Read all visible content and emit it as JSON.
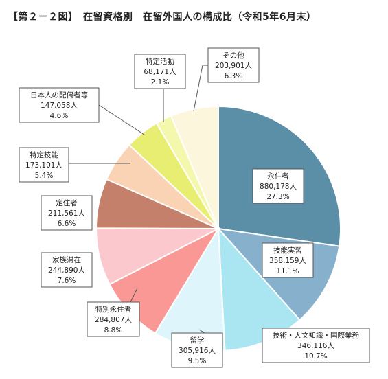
{
  "figure_title": "【第２－２図】　在留資格別　在留外国人の構成比（令和5年6月末）",
  "chart_data": {
    "type": "pie",
    "slices": [
      {
        "name": "永住者",
        "value": 880178,
        "value_label": "880,178人",
        "percent_label": "27.3%",
        "color": "#5b8fa8"
      },
      {
        "name": "技能実習",
        "value": 358159,
        "value_label": "358,159人",
        "percent_label": "11.1%",
        "color": "#86b0cc"
      },
      {
        "name": "技術・人文知識・国際業務",
        "value": 346116,
        "value_label": "346,116人",
        "percent_label": "10.7%",
        "color": "#a9e6f2"
      },
      {
        "name": "留学",
        "value": 305916,
        "value_label": "305,916人",
        "percent_label": "9.5%",
        "color": "#def6fb"
      },
      {
        "name": "特別永住者",
        "value": 284807,
        "value_label": "284,807人",
        "percent_label": "8.8%",
        "color": "#fa9896"
      },
      {
        "name": "家族滞在",
        "value": 244890,
        "value_label": "244,890人",
        "percent_label": "7.6%",
        "color": "#fbc9cd"
      },
      {
        "name": "定住者",
        "value": 211561,
        "value_label": "211,561人",
        "percent_label": "6.6%",
        "color": "#c4806b"
      },
      {
        "name": "特定技能",
        "value": 173101,
        "value_label": "173,101人",
        "percent_label": "5.4%",
        "color": "#f9d3b4"
      },
      {
        "name": "日本人の配偶者等",
        "value": 147058,
        "value_label": "147,058人",
        "percent_label": "4.6%",
        "color": "#e7ee72"
      },
      {
        "name": "特定活動",
        "value": 68171,
        "value_label": "68,171人",
        "percent_label": "2.1%",
        "color": "#f3f8ac"
      },
      {
        "name": "その他",
        "value": 203901,
        "value_label": "203,901人",
        "percent_label": "6.3%",
        "color": "#fcf7dc"
      }
    ]
  }
}
